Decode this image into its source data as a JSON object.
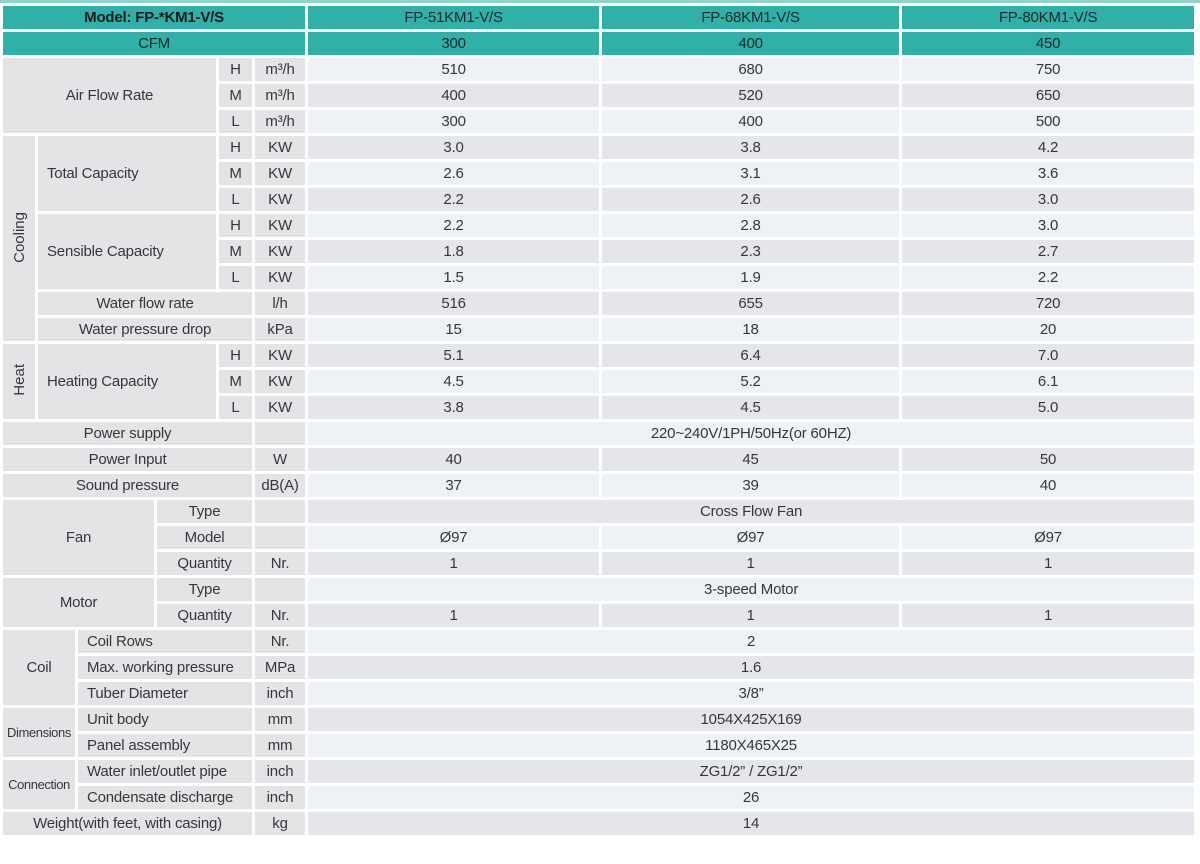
{
  "colors": {
    "teal": "#2fb0a8",
    "teal_light": "#8fd4cf",
    "label_gray": "#e4e4e7",
    "value_gray": "#e5e6e9",
    "value_light": "#eef1f5",
    "text": "#37373b"
  },
  "table": {
    "title_cell": "Model: FP-*KM1-V/S",
    "models": [
      "FP-51KM1-V/S",
      "FP-68KM1-V/S",
      "FP-80KM1-V/S"
    ],
    "rows": [
      {
        "shade": "none",
        "cells": [
          {
            "t": "Model: FP-*KM1-V/S",
            "cs": 6,
            "k": "tealb"
          },
          {
            "t": "FP-51KM1-V/S",
            "k": "teal"
          },
          {
            "t": "FP-68KM1-V/S",
            "k": "teal"
          },
          {
            "t": "FP-80KM1-V/S",
            "k": "teal"
          }
        ]
      },
      {
        "shade": "none",
        "cells": [
          {
            "t": "CFM",
            "cs": 6,
            "k": "teal"
          },
          {
            "t": "300",
            "k": "teal"
          },
          {
            "t": "400",
            "k": "teal"
          },
          {
            "t": "450",
            "k": "teal"
          }
        ]
      },
      {
        "shade": "light",
        "cells": [
          {
            "t": "Air Flow Rate",
            "cs": 4,
            "rs": 3,
            "k": "lab"
          },
          {
            "t": "H",
            "k": "unit"
          },
          {
            "t": "m³/h",
            "k": "unit"
          },
          {
            "t": "510"
          },
          {
            "t": "680"
          },
          {
            "t": "750"
          }
        ]
      },
      {
        "shade": "gray",
        "cells": [
          {
            "t": "M",
            "k": "unit"
          },
          {
            "t": "m³/h",
            "k": "unit"
          },
          {
            "t": "400"
          },
          {
            "t": "520"
          },
          {
            "t": "650"
          }
        ]
      },
      {
        "shade": "light",
        "cells": [
          {
            "t": "L",
            "k": "unit"
          },
          {
            "t": "m³/h",
            "k": "unit"
          },
          {
            "t": "300"
          },
          {
            "t": "400"
          },
          {
            "t": "500"
          }
        ]
      },
      {
        "shade": "gray",
        "cells": [
          {
            "t": "Cooling",
            "rs": 8,
            "k": "vert"
          },
          {
            "t": "Total Capacity",
            "cs": 3,
            "rs": 3,
            "k": "labl"
          },
          {
            "t": "H",
            "k": "unit"
          },
          {
            "t": "KW",
            "k": "unit"
          },
          {
            "t": "3.0"
          },
          {
            "t": "3.8"
          },
          {
            "t": "4.2"
          }
        ]
      },
      {
        "shade": "light",
        "cells": [
          {
            "t": "M",
            "k": "unit"
          },
          {
            "t": "KW",
            "k": "unit"
          },
          {
            "t": "2.6"
          },
          {
            "t": "3.1"
          },
          {
            "t": "3.6"
          }
        ]
      },
      {
        "shade": "gray",
        "cells": [
          {
            "t": "L",
            "k": "unit"
          },
          {
            "t": "KW",
            "k": "unit"
          },
          {
            "t": "2.2"
          },
          {
            "t": "2.6"
          },
          {
            "t": "3.0"
          }
        ]
      },
      {
        "shade": "light",
        "cells": [
          {
            "t": "Sensible Capacity",
            "cs": 3,
            "rs": 3,
            "k": "labl"
          },
          {
            "t": "H",
            "k": "unit"
          },
          {
            "t": "KW",
            "k": "unit"
          },
          {
            "t": "2.2"
          },
          {
            "t": "2.8"
          },
          {
            "t": "3.0"
          }
        ]
      },
      {
        "shade": "gray",
        "cells": [
          {
            "t": "M",
            "k": "unit"
          },
          {
            "t": "KW",
            "k": "unit"
          },
          {
            "t": "1.8"
          },
          {
            "t": "2.3"
          },
          {
            "t": "2.7"
          }
        ]
      },
      {
        "shade": "light",
        "cells": [
          {
            "t": "L",
            "k": "unit"
          },
          {
            "t": "KW",
            "k": "unit"
          },
          {
            "t": "1.5"
          },
          {
            "t": "1.9"
          },
          {
            "t": "2.2"
          }
        ]
      },
      {
        "shade": "gray",
        "cells": [
          {
            "t": "Water flow rate",
            "cs": 4,
            "k": "lab"
          },
          {
            "t": "l/h",
            "k": "unit"
          },
          {
            "t": "516"
          },
          {
            "t": "655"
          },
          {
            "t": "720"
          }
        ]
      },
      {
        "shade": "light",
        "cells": [
          {
            "t": "Water pressure drop",
            "cs": 4,
            "k": "lab"
          },
          {
            "t": "kPa",
            "k": "unit"
          },
          {
            "t": "15"
          },
          {
            "t": "18"
          },
          {
            "t": "20"
          }
        ]
      },
      {
        "shade": "gray",
        "cells": [
          {
            "t": "Heat",
            "rs": 3,
            "k": "vert"
          },
          {
            "t": "Heating Capacity",
            "cs": 3,
            "rs": 3,
            "k": "labl"
          },
          {
            "t": "H",
            "k": "unit"
          },
          {
            "t": "KW",
            "k": "unit"
          },
          {
            "t": "5.1"
          },
          {
            "t": "6.4"
          },
          {
            "t": "7.0"
          }
        ]
      },
      {
        "shade": "light",
        "cells": [
          {
            "t": "M",
            "k": "unit"
          },
          {
            "t": "KW",
            "k": "unit"
          },
          {
            "t": "4.5"
          },
          {
            "t": "5.2"
          },
          {
            "t": "6.1"
          }
        ]
      },
      {
        "shade": "gray",
        "cells": [
          {
            "t": "L",
            "k": "unit"
          },
          {
            "t": "KW",
            "k": "unit"
          },
          {
            "t": "3.8"
          },
          {
            "t": "4.5"
          },
          {
            "t": "5.0"
          }
        ]
      },
      {
        "shade": "light",
        "cells": [
          {
            "t": "Power supply",
            "cs": 5,
            "k": "lab"
          },
          {
            "t": "",
            "k": "unit"
          },
          {
            "t": "220~240V/1PH/50Hz(or 60HZ)",
            "cs": 3
          }
        ]
      },
      {
        "shade": "gray",
        "cells": [
          {
            "t": "Power Input",
            "cs": 5,
            "k": "lab"
          },
          {
            "t": "W",
            "k": "unit"
          },
          {
            "t": "40"
          },
          {
            "t": "45"
          },
          {
            "t": "50"
          }
        ]
      },
      {
        "shade": "light",
        "cells": [
          {
            "t": "Sound pressure",
            "cs": 5,
            "k": "lab"
          },
          {
            "t": "dB(A)",
            "k": "unit"
          },
          {
            "t": "37"
          },
          {
            "t": "39"
          },
          {
            "t": "40"
          }
        ]
      },
      {
        "shade": "gray",
        "cells": [
          {
            "t": "Fan",
            "cs": 3,
            "rs": 3,
            "k": "lab"
          },
          {
            "t": "Type",
            "cs": 2,
            "k": "lab"
          },
          {
            "t": "",
            "k": "unit"
          },
          {
            "t": "Cross Flow Fan",
            "cs": 3
          }
        ]
      },
      {
        "shade": "light",
        "cells": [
          {
            "t": "Model",
            "cs": 2,
            "k": "lab"
          },
          {
            "t": "",
            "k": "unit"
          },
          {
            "t": "Ø97"
          },
          {
            "t": "Ø97"
          },
          {
            "t": "Ø97"
          }
        ]
      },
      {
        "shade": "gray",
        "cells": [
          {
            "t": "Quantity",
            "cs": 2,
            "k": "lab"
          },
          {
            "t": "Nr.",
            "k": "unit"
          },
          {
            "t": "1"
          },
          {
            "t": "1"
          },
          {
            "t": "1"
          }
        ]
      },
      {
        "shade": "light",
        "cells": [
          {
            "t": "Motor",
            "cs": 3,
            "rs": 2,
            "k": "lab"
          },
          {
            "t": "Type",
            "cs": 2,
            "k": "lab"
          },
          {
            "t": "",
            "k": "unit"
          },
          {
            "t": "3-speed Motor",
            "cs": 3
          }
        ]
      },
      {
        "shade": "gray",
        "cells": [
          {
            "t": "Quantity",
            "cs": 2,
            "k": "lab"
          },
          {
            "t": "Nr.",
            "k": "unit"
          },
          {
            "t": "1"
          },
          {
            "t": "1"
          },
          {
            "t": "1"
          }
        ]
      },
      {
        "shade": "light",
        "cells": [
          {
            "t": "Coil",
            "cs": 2,
            "rs": 3,
            "k": "lab"
          },
          {
            "t": "Coil Rows",
            "cs": 3,
            "k": "labl"
          },
          {
            "t": "Nr.",
            "k": "unit"
          },
          {
            "t": "2",
            "cs": 3
          }
        ]
      },
      {
        "shade": "gray",
        "cells": [
          {
            "t": "Max. working pressure",
            "cs": 3,
            "k": "labl"
          },
          {
            "t": "MPa",
            "k": "unit"
          },
          {
            "t": "1.6",
            "cs": 3
          }
        ]
      },
      {
        "shade": "light",
        "cells": [
          {
            "t": "Tuber Diameter",
            "cs": 3,
            "k": "labl"
          },
          {
            "t": "inch",
            "k": "unit"
          },
          {
            "t": "3/8”",
            "cs": 3
          }
        ]
      },
      {
        "shade": "gray",
        "cells": [
          {
            "t": "Dimensions",
            "cs": 2,
            "rs": 2,
            "k": "labsm"
          },
          {
            "t": "Unit body",
            "cs": 3,
            "k": "labl"
          },
          {
            "t": "mm",
            "k": "unit"
          },
          {
            "t": "1054X425X169",
            "cs": 3
          }
        ]
      },
      {
        "shade": "light",
        "cells": [
          {
            "t": "Panel assembly",
            "cs": 3,
            "k": "labl"
          },
          {
            "t": "mm",
            "k": "unit"
          },
          {
            "t": "1180X465X25",
            "cs": 3
          }
        ]
      },
      {
        "shade": "gray",
        "cells": [
          {
            "t": "Connection",
            "cs": 2,
            "rs": 2,
            "k": "labsm"
          },
          {
            "t": "Water inlet/outlet pipe",
            "cs": 3,
            "k": "labl"
          },
          {
            "t": "inch",
            "k": "unit"
          },
          {
            "t": "ZG1/2” / ZG1/2”",
            "cs": 3
          }
        ]
      },
      {
        "shade": "light",
        "cells": [
          {
            "t": "Condensate discharge",
            "cs": 3,
            "k": "labl"
          },
          {
            "t": "inch",
            "k": "unit"
          },
          {
            "t": "26",
            "cs": 3
          }
        ]
      },
      {
        "shade": "gray",
        "cells": [
          {
            "t": "Weight(with feet, with casing)",
            "cs": 5,
            "k": "lab"
          },
          {
            "t": "kg",
            "k": "unit"
          },
          {
            "t": "14",
            "cs": 3
          }
        ]
      }
    ]
  }
}
